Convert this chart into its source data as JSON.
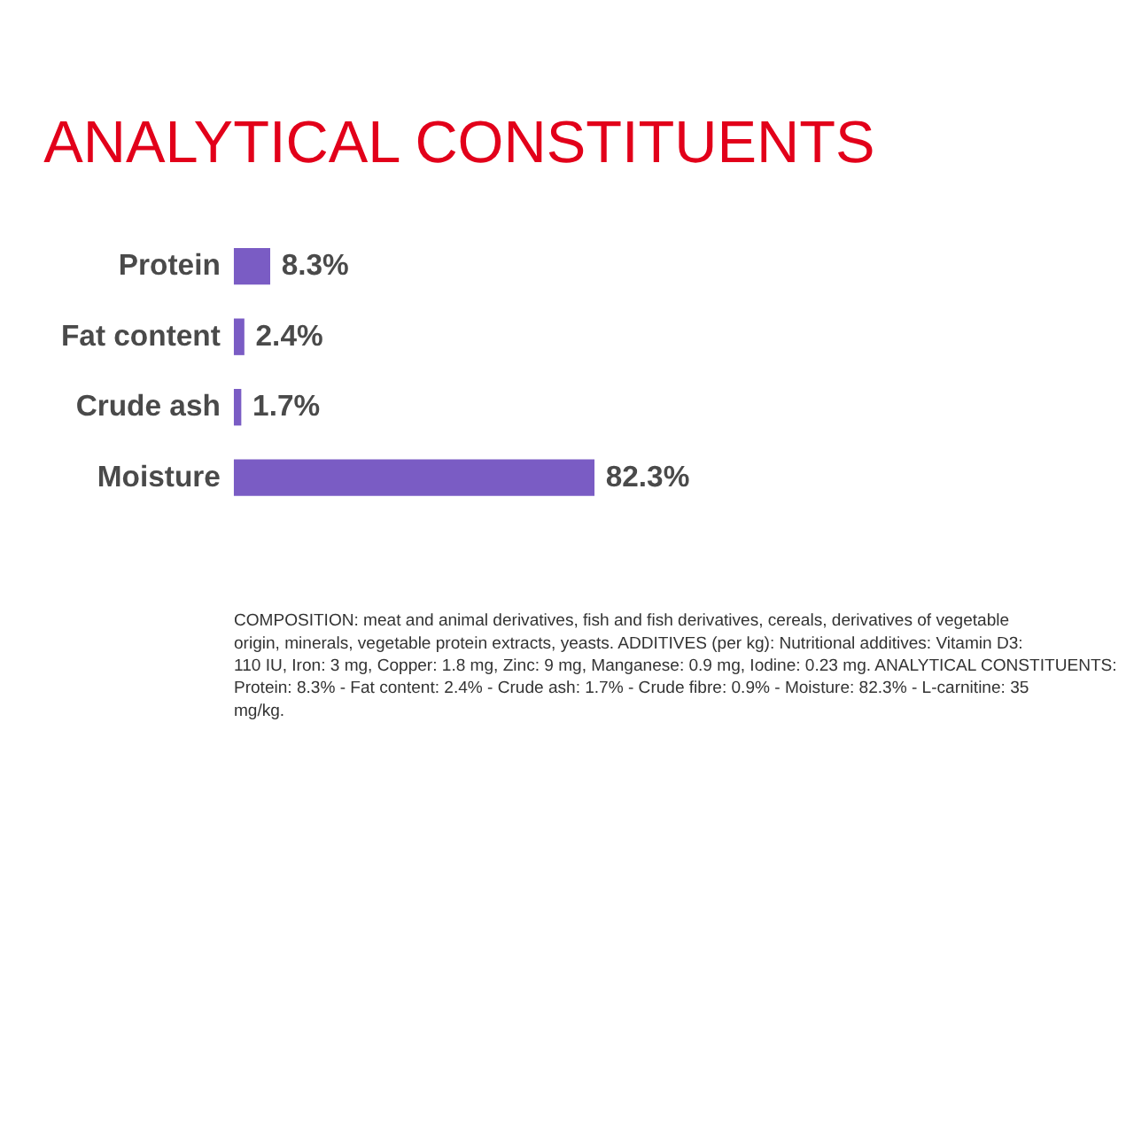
{
  "chart_data": {
    "type": "bar",
    "orientation": "horizontal",
    "title": "ANALYTICAL CONSTITUENTS",
    "categories": [
      "Protein",
      "Fat content",
      "Crude ash",
      "Moisture"
    ],
    "values": [
      8.3,
      2.4,
      1.7,
      82.3
    ],
    "value_labels": [
      "8.3%",
      "2.4%",
      "1.7%",
      "82.3%"
    ],
    "color": "#7a5cc4",
    "annotations": [
      "COMPOSITION: meat and animal derivatives, fish and fish derivatives, cereals, derivatives of vegetable origin, minerals, vegetable protein extracts, yeasts. ADDITIVES (per kg): Nutritional additives: Vitamin D3: 110 IU, Iron: 3 mg, Copper: 1.8 mg, Zinc: 9 mg, Manganese: 0.9 mg, Iodine: 0.23 mg. ANALYTICAL CONSTITUENTS: Protein: 8.3% - Fat content: 2.4% - Crude ash: 1.7% - Crude fibre: 0.9% - Moisture: 82.3% - L-carnitine: 35 mg/kg."
    ]
  }
}
